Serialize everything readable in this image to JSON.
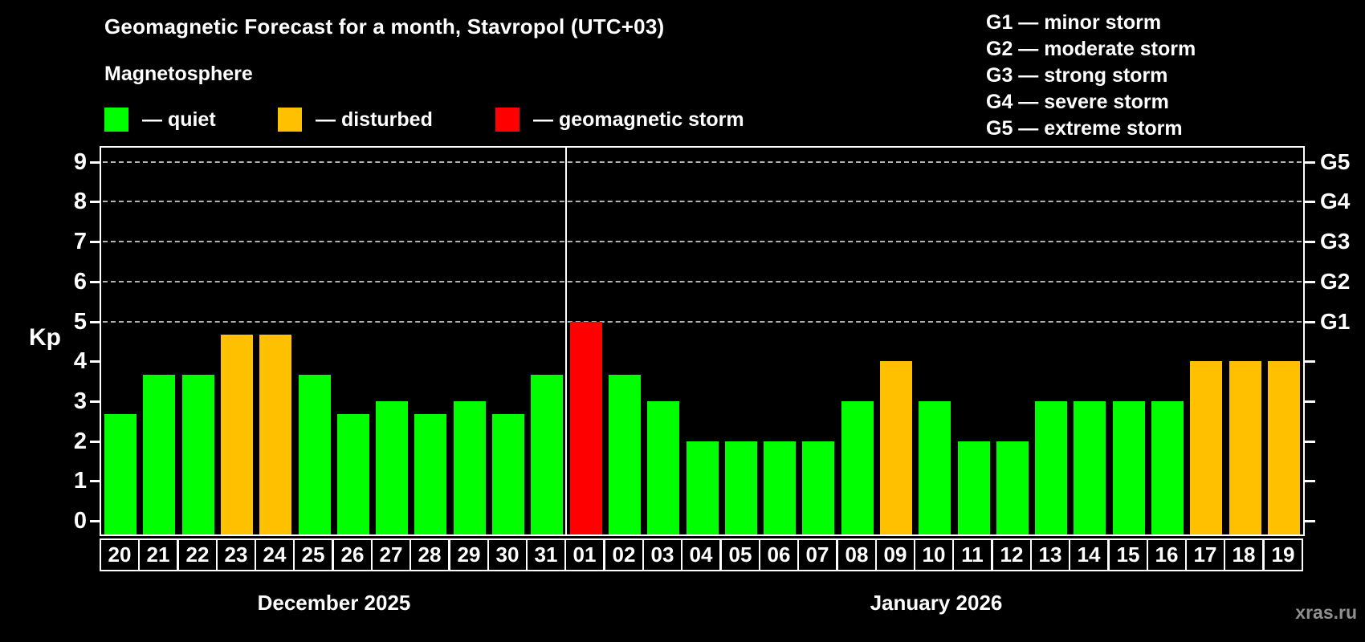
{
  "header": {
    "title": "Geomagnetic Forecast for a month, Stavropol (UTC+03)",
    "subtitle": "Magnetosphere"
  },
  "legend": {
    "items": [
      {
        "name": "quiet",
        "label": "— quiet",
        "color": "#00ff00"
      },
      {
        "name": "disturbed",
        "label": "— disturbed",
        "color": "#ffc000"
      },
      {
        "name": "storm",
        "label": "— geomagnetic storm",
        "color": "#ff0000"
      }
    ]
  },
  "g_legend": [
    "G1 — minor storm",
    "G2 — moderate storm",
    "G3 — strong storm",
    "G4 — severe storm",
    "G5 — extreme storm"
  ],
  "watermark": "xras.ru",
  "chart_data": {
    "type": "bar",
    "title": "Geomagnetic Forecast for a month, Stavropol (UTC+03)",
    "xlabel": "",
    "ylabel": "Kp",
    "ylim": [
      0,
      9.4
    ],
    "yticks": [
      0,
      1,
      2,
      3,
      4,
      5,
      6,
      7,
      8,
      9
    ],
    "gridlines_at_kp": [
      5,
      6,
      7,
      8,
      9
    ],
    "grid_style": "dashed",
    "right_axis": [
      {
        "label": "G1",
        "kp": 5
      },
      {
        "label": "G2",
        "kp": 6
      },
      {
        "label": "G3",
        "kp": 7
      },
      {
        "label": "G4",
        "kp": 8
      },
      {
        "label": "G5",
        "kp": 9
      }
    ],
    "status_colors": {
      "quiet": "#00ff00",
      "disturbed": "#ffc000",
      "storm": "#ff0000"
    },
    "months": [
      {
        "label": "December 2025",
        "start_index": 0,
        "days": 12
      },
      {
        "label": "January 2026",
        "start_index": 12,
        "days": 19
      }
    ],
    "separator_after_index": 11,
    "bars": [
      {
        "day": "20",
        "kp": 2.67,
        "status": "quiet"
      },
      {
        "day": "21",
        "kp": 3.67,
        "status": "quiet"
      },
      {
        "day": "22",
        "kp": 3.67,
        "status": "quiet"
      },
      {
        "day": "23",
        "kp": 4.67,
        "status": "disturbed"
      },
      {
        "day": "24",
        "kp": 4.67,
        "status": "disturbed"
      },
      {
        "day": "25",
        "kp": 3.67,
        "status": "quiet"
      },
      {
        "day": "26",
        "kp": 2.67,
        "status": "quiet"
      },
      {
        "day": "27",
        "kp": 3.0,
        "status": "quiet"
      },
      {
        "day": "28",
        "kp": 2.67,
        "status": "quiet"
      },
      {
        "day": "29",
        "kp": 3.0,
        "status": "quiet"
      },
      {
        "day": "30",
        "kp": 2.67,
        "status": "quiet"
      },
      {
        "day": "31",
        "kp": 3.67,
        "status": "quiet"
      },
      {
        "day": "01",
        "kp": 5.0,
        "status": "storm"
      },
      {
        "day": "02",
        "kp": 3.67,
        "status": "quiet"
      },
      {
        "day": "03",
        "kp": 3.0,
        "status": "quiet"
      },
      {
        "day": "04",
        "kp": 2.0,
        "status": "quiet"
      },
      {
        "day": "05",
        "kp": 2.0,
        "status": "quiet"
      },
      {
        "day": "06",
        "kp": 2.0,
        "status": "quiet"
      },
      {
        "day": "07",
        "kp": 2.0,
        "status": "quiet"
      },
      {
        "day": "08",
        "kp": 3.0,
        "status": "quiet"
      },
      {
        "day": "09",
        "kp": 4.0,
        "status": "disturbed"
      },
      {
        "day": "10",
        "kp": 3.0,
        "status": "quiet"
      },
      {
        "day": "11",
        "kp": 2.0,
        "status": "quiet"
      },
      {
        "day": "12",
        "kp": 2.0,
        "status": "quiet"
      },
      {
        "day": "13",
        "kp": 3.0,
        "status": "quiet"
      },
      {
        "day": "14",
        "kp": 3.0,
        "status": "quiet"
      },
      {
        "day": "15",
        "kp": 3.0,
        "status": "quiet"
      },
      {
        "day": "16",
        "kp": 3.0,
        "status": "quiet"
      },
      {
        "day": "17",
        "kp": 4.0,
        "status": "disturbed"
      },
      {
        "day": "18",
        "kp": 4.0,
        "status": "disturbed"
      },
      {
        "day": "19",
        "kp": 4.0,
        "status": "disturbed"
      }
    ]
  }
}
